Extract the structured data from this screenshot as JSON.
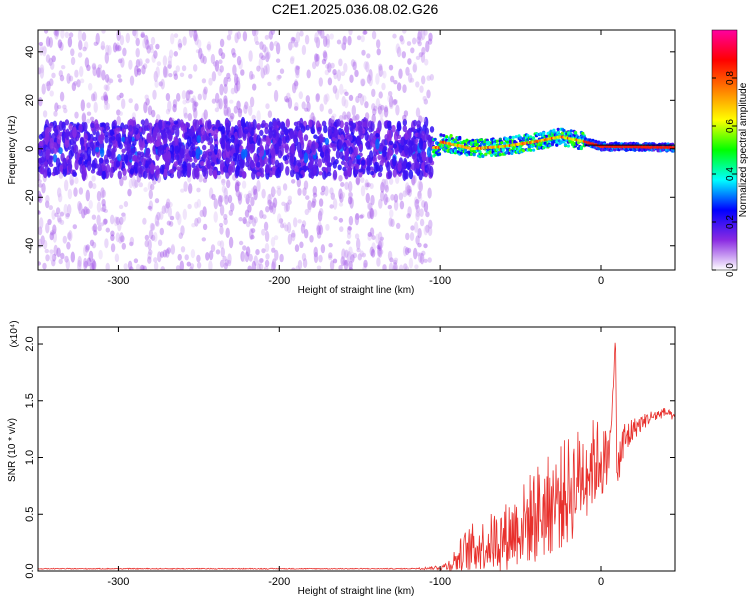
{
  "title": "C2E1.2025.036.08.02.G26",
  "chart_data": [
    {
      "type": "heatmap",
      "xlabel": "Height of straight line (km)",
      "ylabel": "Frequency (Hz)",
      "xlim": [
        -350,
        46
      ],
      "ylim": [
        -50,
        49
      ],
      "xticks": [
        -300,
        -200,
        -100,
        0
      ],
      "yticks": [
        -40,
        -20,
        0,
        20,
        40
      ],
      "x_tick_labels": [
        "-300",
        "-200",
        "-100",
        "0"
      ],
      "y_tick_labels": [
        "-40",
        "-20",
        "0",
        "20",
        "40"
      ],
      "colorbar": {
        "label": "Normalized spectral amplitude",
        "range": [
          0.0,
          1.0
        ],
        "ticks": [
          0.0,
          0.2,
          0.4,
          0.6,
          0.8
        ],
        "tick_labels": [
          "0.0",
          "0.2",
          "0.4",
          "0.6",
          "0.8"
        ],
        "colormap": [
          "#ffffff",
          "#8a2be2",
          "#0000ff",
          "#00ffff",
          "#00ff00",
          "#ffff00",
          "#ff8000",
          "#ff0000",
          "#ff00a0"
        ]
      },
      "signal_line_frequency": 1.5,
      "ridge": [
        {
          "x": -100,
          "y": 3
        },
        {
          "x": -80,
          "y": 0
        },
        {
          "x": -60,
          "y": 1
        },
        {
          "x": -40,
          "y": 3
        },
        {
          "x": -25,
          "y": 5
        },
        {
          "x": -10,
          "y": 3
        },
        {
          "x": 0,
          "y": 1
        },
        {
          "x": 46,
          "y": 0.5
        }
      ],
      "colors": {
        "signal_line": "#000000",
        "ridge_edge": "#00ff00",
        "ridge_core": "#ff2060"
      }
    },
    {
      "type": "line",
      "xlabel": "Height of straight line (km)",
      "ylabel": "SNR (10 * v/v)",
      "y_multiplier": "(x10⁴)",
      "xlim": [
        -350,
        46
      ],
      "ylim": [
        0,
        2.15
      ],
      "xticks": [
        -300,
        -200,
        -100,
        0
      ],
      "yticks": [
        0.0,
        0.5,
        1.0,
        1.5,
        2.0
      ],
      "x_tick_labels": [
        "-300",
        "-200",
        "-100",
        "0"
      ],
      "y_tick_labels": [
        "0.0",
        "0.5",
        "1.0",
        "1.5",
        "2.0"
      ],
      "series": [
        {
          "color": "#e8302c",
          "x": [
            -350,
            -120,
            -100,
            -95,
            -90,
            -85,
            -80,
            -75,
            -70,
            -60,
            -50,
            -40,
            -30,
            -20,
            -15,
            -10,
            -5,
            0,
            5,
            9,
            10,
            11,
            15,
            20,
            30,
            40,
            46
          ],
          "y": [
            0.02,
            0.02,
            0.03,
            0.05,
            0.1,
            0.15,
            0.2,
            0.22,
            0.25,
            0.3,
            0.4,
            0.5,
            0.6,
            0.7,
            0.8,
            0.9,
            0.95,
            1.0,
            0.9,
            2.1,
            0.5,
            1.0,
            1.15,
            1.25,
            1.35,
            1.4,
            1.35
          ],
          "band_width": [
            0,
            0,
            0.02,
            0.05,
            0.12,
            0.2,
            0.22,
            0.22,
            0.25,
            0.3,
            0.35,
            0.45,
            0.45,
            0.5,
            0.45,
            0.45,
            0.4,
            0.35,
            0.3,
            0,
            0.3,
            0.2,
            0.2,
            0.1,
            0.06,
            0.04,
            0.03
          ]
        }
      ]
    }
  ]
}
